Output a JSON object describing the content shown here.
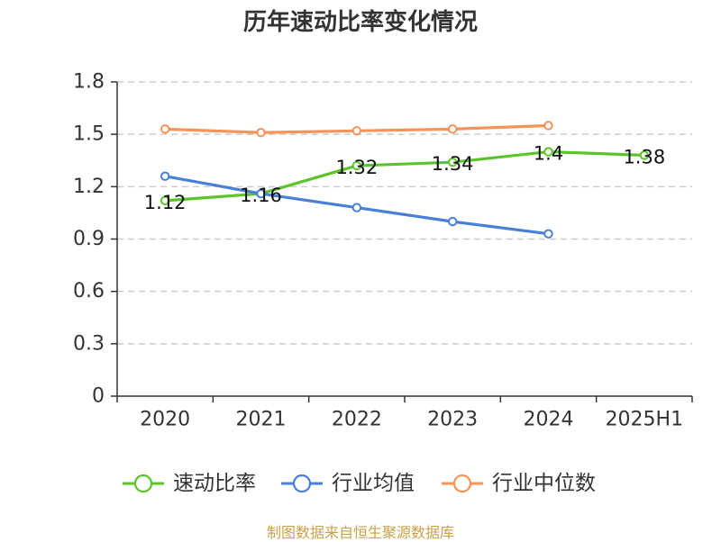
{
  "chart_data": {
    "type": "line",
    "title": "历年速动比率变化情况",
    "categories": [
      "2020",
      "2021",
      "2022",
      "2023",
      "2024",
      "2025H1"
    ],
    "y_ticks": [
      "0",
      "0.3",
      "0.6",
      "0.9",
      "1.2",
      "1.5",
      "1.8"
    ],
    "ylim": [
      0,
      1.8
    ],
    "grid": true,
    "legend_position": "bottom",
    "series": [
      {
        "name": "速动比率",
        "color": "#5ac42a",
        "values": [
          1.12,
          1.16,
          1.32,
          1.34,
          1.4,
          1.38
        ],
        "labels": [
          "1.12",
          "1.16",
          "1.32",
          "1.34",
          "1.4",
          "1.38"
        ]
      },
      {
        "name": "行业均值",
        "color": "#4a7fd8",
        "values": [
          1.26,
          1.16,
          1.08,
          1.0,
          0.93,
          null
        ]
      },
      {
        "name": "行业中位数",
        "color": "#f5935a",
        "values": [
          1.53,
          1.51,
          1.52,
          1.53,
          1.55,
          null
        ]
      }
    ]
  },
  "watermark": "制图数据来自恒生聚源数据库"
}
